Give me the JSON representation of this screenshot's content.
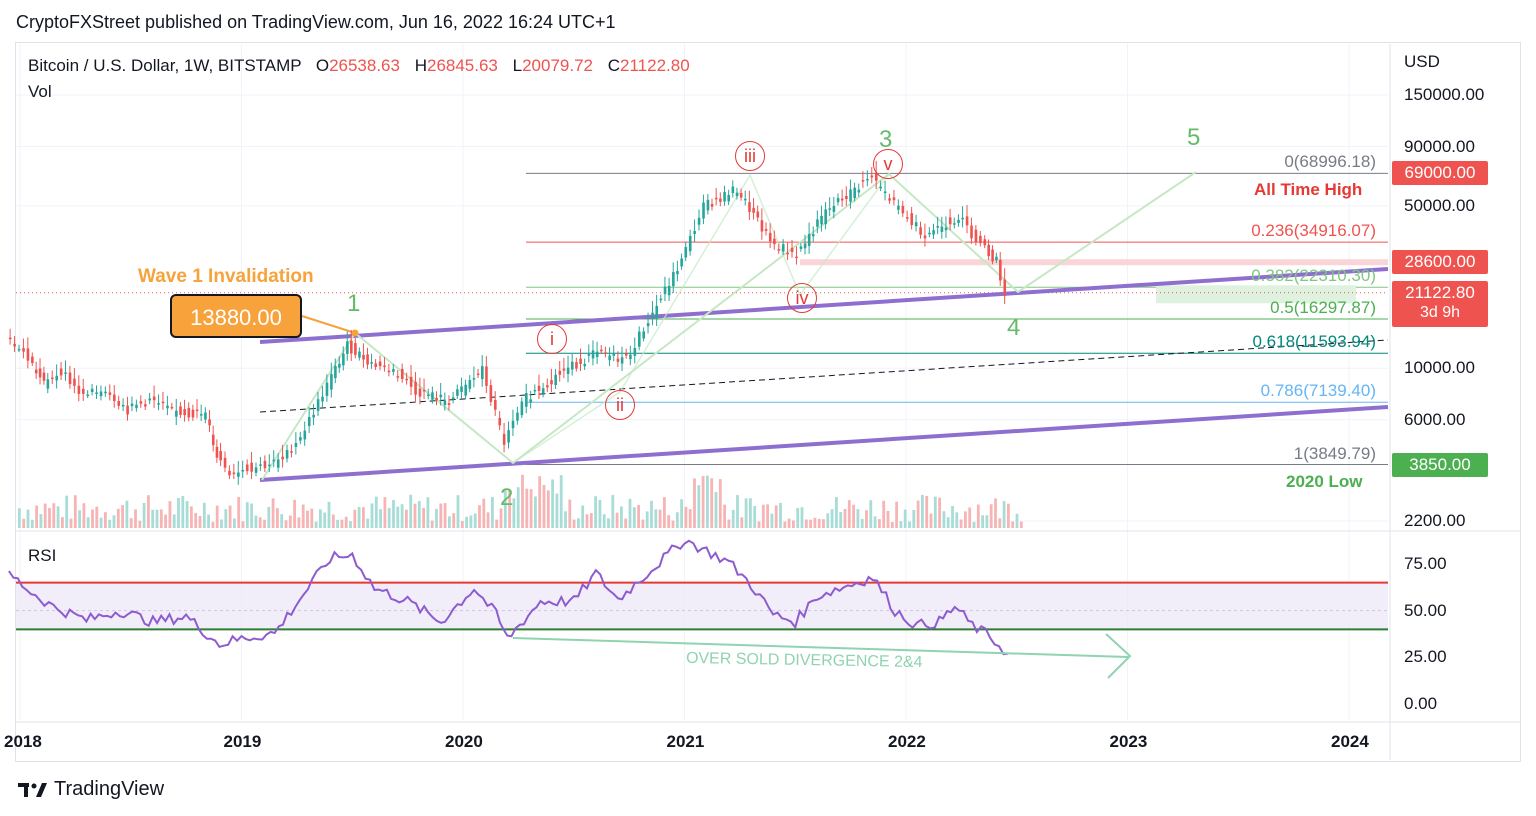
{
  "publisher_line": "CryptoFXStreet published on TradingView.com, Jun 16, 2022 16:24 UTC+1",
  "symbol": {
    "name": "Bitcoin / U.S. Dollar, 1W, BITSTAMP",
    "open_label": "O",
    "open": "26538.63",
    "high_label": "H",
    "high": "26845.63",
    "low_label": "L",
    "low": "20079.72",
    "close_label": "C",
    "close": "21122.80"
  },
  "vol_label": "Vol",
  "rsi_label": "RSI",
  "currency": "USD",
  "footer_brand": "TradingView",
  "icons": {
    "brand": "tradingview-logo-icon"
  },
  "colors": {
    "up": "#26a69a",
    "down": "#ef5350",
    "purple": "#8e6fcf",
    "green_note": "#4caf50",
    "orange": "#f7a23a",
    "rsi_line": "#8e5ccf"
  },
  "chart_data": {
    "type": "line",
    "title": "Bitcoin / U.S. Dollar, 1W, BITSTAMP",
    "scale": "log",
    "y_ticks": [
      "150000.00",
      "90000.00",
      "50000.00",
      "10000.00",
      "6000.00",
      "2200.00"
    ],
    "x_ticks": [
      "2018",
      "2019",
      "2020",
      "2021",
      "2022",
      "2023",
      "2024"
    ],
    "x_tick_years": [
      2018,
      2019,
      2020,
      2021,
      2022,
      2023,
      2024
    ],
    "price_tags": [
      {
        "text": "69000.00",
        "value": 69000,
        "color": "#ef5350"
      },
      {
        "text": "28600.00",
        "value": 28600,
        "color": "#ef5350"
      },
      {
        "text": "21122.80",
        "sub": "3d 9h",
        "value": 21122.8,
        "color": "#ef5350"
      },
      {
        "text": "3850.00",
        "value": 3850,
        "color": "#4caf50"
      }
    ],
    "fib_levels": [
      {
        "text": "0(68996.18)",
        "value": 68996.18,
        "color": "#787b86"
      },
      {
        "text": "0.236(34916.07)",
        "value": 34916.07,
        "color": "#ef5350"
      },
      {
        "text": "0.382(22310.30)",
        "value": 22310.3,
        "color": "#81c784"
      },
      {
        "text": "0.5(16297.87)",
        "value": 16297.87,
        "color": "#4caf50"
      },
      {
        "text": "0.618(11593.94)",
        "value": 11593.94,
        "color": "#00897b"
      },
      {
        "text": "0.786(7139.40)",
        "value": 7139.4,
        "color": "#64b5f6"
      },
      {
        "text": "1(3849.79)",
        "value": 3849.79,
        "color": "#787b86"
      }
    ],
    "notes": [
      {
        "text": "All Time High",
        "color": "#e53935"
      },
      {
        "text": "2020 Low",
        "color": "#4caf50"
      },
      {
        "text": "Wave 1 Invalidation",
        "color": "#f7a23a"
      }
    ],
    "invalidation_box": "13880.00",
    "major_waves": [
      "1",
      "2",
      "3",
      "4",
      "5"
    ],
    "minor_waves": [
      "i",
      "ii",
      "iii",
      "iv",
      "v"
    ],
    "price_path": [
      {
        "t": 2017.95,
        "v": 14000
      },
      {
        "t": 2018.05,
        "v": 11000
      },
      {
        "t": 2018.12,
        "v": 8500
      },
      {
        "t": 2018.2,
        "v": 9800
      },
      {
        "t": 2018.3,
        "v": 7500
      },
      {
        "t": 2018.4,
        "v": 8200
      },
      {
        "t": 2018.5,
        "v": 6600
      },
      {
        "t": 2018.6,
        "v": 7300
      },
      {
        "t": 2018.7,
        "v": 6500
      },
      {
        "t": 2018.85,
        "v": 6300
      },
      {
        "t": 2018.9,
        "v": 4200
      },
      {
        "t": 2018.96,
        "v": 3600
      },
      {
        "t": 2019.1,
        "v": 3800
      },
      {
        "t": 2019.2,
        "v": 4000
      },
      {
        "t": 2019.3,
        "v": 5500
      },
      {
        "t": 2019.4,
        "v": 8500
      },
      {
        "t": 2019.49,
        "v": 12500
      },
      {
        "t": 2019.6,
        "v": 10500
      },
      {
        "t": 2019.7,
        "v": 9800
      },
      {
        "t": 2019.8,
        "v": 8000
      },
      {
        "t": 2019.95,
        "v": 7200
      },
      {
        "t": 2020.1,
        "v": 9800
      },
      {
        "t": 2020.2,
        "v": 4800
      },
      {
        "t": 2020.3,
        "v": 7500
      },
      {
        "t": 2020.45,
        "v": 9500
      },
      {
        "t": 2020.6,
        "v": 11500
      },
      {
        "t": 2020.75,
        "v": 11000
      },
      {
        "t": 2020.85,
        "v": 16000
      },
      {
        "t": 2021.0,
        "v": 29000
      },
      {
        "t": 2021.1,
        "v": 50000
      },
      {
        "t": 2021.25,
        "v": 59000
      },
      {
        "t": 2021.4,
        "v": 35000
      },
      {
        "t": 2021.52,
        "v": 31000
      },
      {
        "t": 2021.65,
        "v": 47000
      },
      {
        "t": 2021.8,
        "v": 61000
      },
      {
        "t": 2021.86,
        "v": 66000
      },
      {
        "t": 2022.0,
        "v": 46000
      },
      {
        "t": 2022.1,
        "v": 38000
      },
      {
        "t": 2022.25,
        "v": 45000
      },
      {
        "t": 2022.35,
        "v": 34000
      },
      {
        "t": 2022.42,
        "v": 29000
      },
      {
        "t": 2022.46,
        "v": 21122.8
      }
    ],
    "rsi": {
      "y_ticks": [
        "75.00",
        "50.00",
        "25.00",
        "0.00"
      ],
      "overbought": 65,
      "oversold": 40,
      "divergence_label": "OVER SOLD DIVERGENCE 2&4",
      "path": [
        {
          "t": 2017.95,
          "v": 70
        },
        {
          "t": 2018.05,
          "v": 60
        },
        {
          "t": 2018.15,
          "v": 52
        },
        {
          "t": 2018.3,
          "v": 45
        },
        {
          "t": 2018.45,
          "v": 50
        },
        {
          "t": 2018.6,
          "v": 44
        },
        {
          "t": 2018.75,
          "v": 47
        },
        {
          "t": 2018.9,
          "v": 32
        },
        {
          "t": 2019.0,
          "v": 35
        },
        {
          "t": 2019.15,
          "v": 38
        },
        {
          "t": 2019.3,
          "v": 62
        },
        {
          "t": 2019.4,
          "v": 78
        },
        {
          "t": 2019.5,
          "v": 80
        },
        {
          "t": 2019.6,
          "v": 62
        },
        {
          "t": 2019.75,
          "v": 55
        },
        {
          "t": 2019.9,
          "v": 44
        },
        {
          "t": 2020.05,
          "v": 62
        },
        {
          "t": 2020.15,
          "v": 48
        },
        {
          "t": 2020.2,
          "v": 35
        },
        {
          "t": 2020.35,
          "v": 55
        },
        {
          "t": 2020.5,
          "v": 55
        },
        {
          "t": 2020.6,
          "v": 70
        },
        {
          "t": 2020.7,
          "v": 56
        },
        {
          "t": 2020.85,
          "v": 72
        },
        {
          "t": 2021.0,
          "v": 88
        },
        {
          "t": 2021.1,
          "v": 82
        },
        {
          "t": 2021.2,
          "v": 76
        },
        {
          "t": 2021.3,
          "v": 64
        },
        {
          "t": 2021.4,
          "v": 48
        },
        {
          "t": 2021.5,
          "v": 44
        },
        {
          "t": 2021.6,
          "v": 58
        },
        {
          "t": 2021.7,
          "v": 62
        },
        {
          "t": 2021.85,
          "v": 68
        },
        {
          "t": 2021.95,
          "v": 50
        },
        {
          "t": 2022.05,
          "v": 42
        },
        {
          "t": 2022.15,
          "v": 44
        },
        {
          "t": 2022.22,
          "v": 52
        },
        {
          "t": 2022.3,
          "v": 42
        },
        {
          "t": 2022.38,
          "v": 36
        },
        {
          "t": 2022.46,
          "v": 27
        }
      ]
    }
  }
}
